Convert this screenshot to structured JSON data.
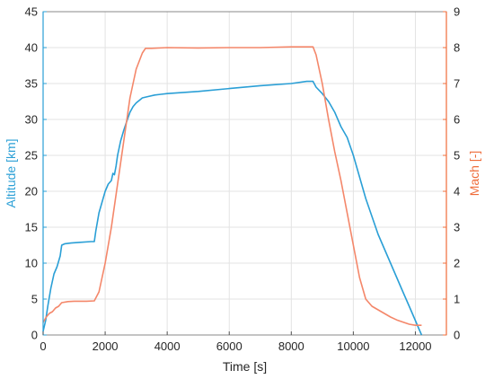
{
  "chart_data": {
    "type": "line",
    "xlabel": "Time [s]",
    "ylabel_left": "Altitude [km]",
    "ylabel_right": "Mach [-]",
    "xlim": [
      0,
      13000
    ],
    "ylim_left": [
      0,
      45
    ],
    "ylim_right": [
      0,
      9
    ],
    "xticks": [
      "0",
      "2000",
      "4000",
      "6000",
      "8000",
      "10000",
      "12000"
    ],
    "yticks_left": [
      "0",
      "5",
      "10",
      "15",
      "20",
      "25",
      "30",
      "35",
      "40",
      "45"
    ],
    "yticks_right": [
      "0",
      "1",
      "2",
      "3",
      "4",
      "5",
      "6",
      "7",
      "8",
      "9"
    ],
    "grid": true,
    "colors": {
      "left_axis": "#2a9fd6",
      "right_axis": "#ef6c3a",
      "altitude": "#2a9fd6",
      "mach": "#f4876a"
    },
    "series": [
      {
        "key": "altitude",
        "axis": "left",
        "x": [
          0,
          80,
          150,
          250,
          350,
          450,
          550,
          600,
          700,
          900,
          1200,
          1550,
          1650,
          1700,
          1800,
          2000,
          2100,
          2200,
          2250,
          2300,
          2350,
          2400,
          2450,
          2500,
          2600,
          2700,
          2800,
          2900,
          3000,
          3200,
          3400,
          3600,
          3800,
          4000,
          5000,
          6000,
          7000,
          8000,
          8500,
          8700,
          8800,
          9000,
          9200,
          9400,
          9600,
          9800,
          10000,
          10200,
          10400,
          10600,
          10800,
          11000,
          11200,
          11400,
          11600,
          11800,
          12000,
          12100,
          12200
        ],
        "y": [
          0.5,
          2,
          4,
          6.5,
          8.5,
          9.5,
          11,
          12.5,
          12.7,
          12.8,
          12.9,
          13.0,
          13.0,
          14.5,
          17,
          20,
          21,
          21.5,
          22.5,
          22.3,
          23.5,
          25,
          26,
          27,
          28.5,
          29.8,
          31,
          31.8,
          32.3,
          33.0,
          33.2,
          33.4,
          33.5,
          33.6,
          33.9,
          34.3,
          34.7,
          35.0,
          35.3,
          35.3,
          34.5,
          33.6,
          32.5,
          31.0,
          29.0,
          27.5,
          25.0,
          22.0,
          19.0,
          16.5,
          14.0,
          12.0,
          10.0,
          8.0,
          6.0,
          4.0,
          2.0,
          1.0,
          0.0
        ]
      },
      {
        "key": "mach",
        "axis": "right",
        "x": [
          0,
          100,
          200,
          300,
          400,
          500,
          600,
          800,
          1000,
          1200,
          1400,
          1650,
          1800,
          2000,
          2200,
          2400,
          2600,
          2800,
          3000,
          3200,
          3300,
          3500,
          4000,
          5000,
          6000,
          7000,
          8000,
          8700,
          8800,
          9000,
          9200,
          9400,
          9600,
          9800,
          10000,
          10200,
          10400,
          10600,
          10800,
          11000,
          11200,
          11400,
          11600,
          11800,
          12000,
          12200
        ],
        "y": [
          0.35,
          0.5,
          0.6,
          0.65,
          0.75,
          0.8,
          0.9,
          0.93,
          0.94,
          0.94,
          0.94,
          0.95,
          1.2,
          2.0,
          3.0,
          4.2,
          5.4,
          6.6,
          7.4,
          7.85,
          7.98,
          7.98,
          8.0,
          7.99,
          8.0,
          8.0,
          8.02,
          8.02,
          7.8,
          7.0,
          6.0,
          5.1,
          4.3,
          3.4,
          2.5,
          1.6,
          1.0,
          0.8,
          0.7,
          0.6,
          0.5,
          0.42,
          0.36,
          0.3,
          0.27,
          0.27
        ]
      }
    ]
  }
}
